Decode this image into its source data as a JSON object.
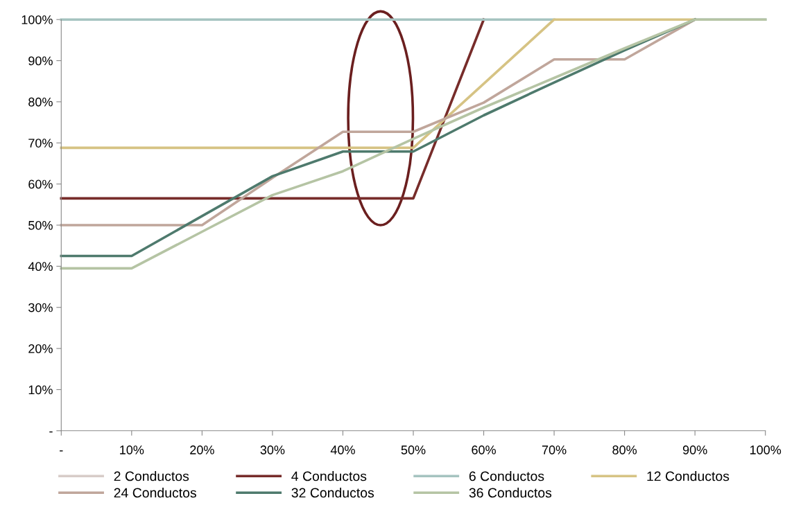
{
  "chart_data": {
    "type": "line",
    "x": [
      0,
      0.1,
      0.2,
      0.3,
      0.4,
      0.5,
      0.6,
      0.7,
      0.8,
      0.9,
      1.0
    ],
    "series": [
      {
        "name": "2 Conductos",
        "color": "#d7ccc8",
        "values": [
          null,
          null,
          null,
          null,
          null,
          null,
          null,
          null,
          null,
          null,
          null
        ]
      },
      {
        "name": "4 Conductos",
        "color": "#772c2a",
        "values": [
          0.565,
          0.565,
          0.565,
          0.565,
          0.565,
          0.565,
          1.0,
          null,
          null,
          null,
          null
        ]
      },
      {
        "name": "6 Conductos",
        "color": "#a5c3c0",
        "values": [
          1.0,
          1.0,
          1.0,
          1.0,
          1.0,
          1.0,
          1.0,
          1.0,
          null,
          1.0,
          1.0
        ]
      },
      {
        "name": "12 Conductos",
        "color": "#d6c384",
        "values": [
          0.688,
          0.688,
          0.688,
          0.688,
          0.688,
          0.688,
          0.844,
          1.0,
          1.0,
          1.0,
          null
        ]
      },
      {
        "name": "24 Conductos",
        "color": "#c0a69b",
        "values": [
          0.5,
          0.5,
          0.5,
          0.615,
          0.727,
          0.727,
          0.798,
          0.903,
          0.903,
          1.0,
          null
        ]
      },
      {
        "name": "32 Conductos",
        "color": "#4e7a6d",
        "values": [
          0.425,
          0.425,
          0.522,
          0.619,
          0.679,
          0.679,
          0.767,
          0.847,
          0.925,
          1.0,
          null
        ]
      },
      {
        "name": "36 Conductos",
        "color": "#b5c4a4",
        "values": [
          0.395,
          0.395,
          0.484,
          0.573,
          0.631,
          0.71,
          0.786,
          0.858,
          0.93,
          1.0,
          1.0
        ]
      }
    ],
    "xlim": [
      0,
      1
    ],
    "xticks": [
      {
        "value": 0,
        "label": "-"
      },
      {
        "value": 0.1,
        "label": "10%"
      },
      {
        "value": 0.2,
        "label": "20%"
      },
      {
        "value": 0.3,
        "label": "30%"
      },
      {
        "value": 0.4,
        "label": "40%"
      },
      {
        "value": 0.5,
        "label": "50%"
      },
      {
        "value": 0.6,
        "label": "60%"
      },
      {
        "value": 0.7,
        "label": "70%"
      },
      {
        "value": 0.8,
        "label": "80%"
      },
      {
        "value": 0.9,
        "label": "90%"
      },
      {
        "value": 1.0,
        "label": "100%"
      }
    ],
    "ylim": [
      0,
      1
    ],
    "yticks": [
      {
        "value": 0,
        "label": "-"
      },
      {
        "value": 0.1,
        "label": "10%"
      },
      {
        "value": 0.2,
        "label": "20%"
      },
      {
        "value": 0.3,
        "label": "30%"
      },
      {
        "value": 0.4,
        "label": "40%"
      },
      {
        "value": 0.5,
        "label": "50%"
      },
      {
        "value": 0.6,
        "label": "60%"
      },
      {
        "value": 0.7,
        "label": "70%"
      },
      {
        "value": 0.8,
        "label": "80%"
      },
      {
        "value": 0.9,
        "label": "90%"
      },
      {
        "value": 1.0,
        "label": "100%"
      }
    ],
    "grid": false,
    "legend": "bottom",
    "marker": "none",
    "line_style": "solid"
  }
}
